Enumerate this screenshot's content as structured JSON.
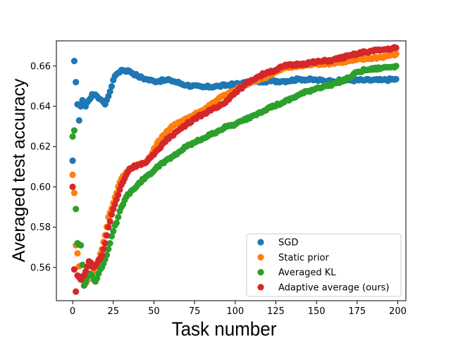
{
  "chart_data": {
    "type": "scatter",
    "xlabel": "Task number",
    "ylabel": "Averaged test accuracy",
    "xlim": [
      -10,
      205
    ],
    "ylim": [
      0.5435,
      0.6725
    ],
    "xticks": [
      0,
      25,
      50,
      75,
      100,
      125,
      150,
      175,
      200
    ],
    "yticks": [
      0.56,
      0.58,
      0.6,
      0.62,
      0.64,
      0.66
    ],
    "ytick_labels": [
      "0.56",
      "0.58",
      "0.60",
      "0.62",
      "0.64",
      "0.66"
    ],
    "xtick_labels": [
      "0",
      "25",
      "50",
      "75",
      "100",
      "125",
      "150",
      "175",
      "200"
    ],
    "grid": false,
    "legend_position": "lower-right",
    "series": [
      {
        "name": "SGD",
        "color": "#1f77b4",
        "anchors": [
          [
            0,
            0.613
          ],
          [
            1,
            0.6625
          ],
          [
            2,
            0.652
          ],
          [
            3,
            0.641
          ],
          [
            4,
            0.633
          ],
          [
            5,
            0.64
          ],
          [
            6,
            0.643
          ],
          [
            8,
            0.64
          ],
          [
            10,
            0.643
          ],
          [
            12,
            0.646
          ],
          [
            15,
            0.645
          ],
          [
            18,
            0.643
          ],
          [
            20,
            0.641
          ],
          [
            22,
            0.645
          ],
          [
            25,
            0.653
          ],
          [
            27,
            0.656
          ],
          [
            30,
            0.658
          ],
          [
            35,
            0.6575
          ],
          [
            40,
            0.655
          ],
          [
            45,
            0.6535
          ],
          [
            50,
            0.6525
          ],
          [
            60,
            0.653
          ],
          [
            70,
            0.6505
          ],
          [
            80,
            0.6495
          ],
          [
            90,
            0.65
          ],
          [
            100,
            0.651
          ],
          [
            110,
            0.652
          ],
          [
            120,
            0.6525
          ],
          [
            130,
            0.6525
          ],
          [
            140,
            0.6535
          ],
          [
            150,
            0.653
          ],
          [
            160,
            0.6525
          ],
          [
            170,
            0.653
          ],
          [
            180,
            0.653
          ],
          [
            190,
            0.653
          ],
          [
            199,
            0.6535
          ]
        ]
      },
      {
        "name": "Static prior",
        "color": "#ff7f0e",
        "anchors": [
          [
            0,
            0.606
          ],
          [
            1,
            0.597
          ],
          [
            2,
            0.571
          ],
          [
            3,
            0.567
          ],
          [
            5,
            0.555
          ],
          [
            8,
            0.552
          ],
          [
            10,
            0.556
          ],
          [
            13,
            0.558
          ],
          [
            15,
            0.562
          ],
          [
            18,
            0.569
          ],
          [
            20,
            0.576
          ],
          [
            22,
            0.585
          ],
          [
            25,
            0.592
          ],
          [
            28,
            0.6
          ],
          [
            30,
            0.604
          ],
          [
            35,
            0.609
          ],
          [
            40,
            0.611
          ],
          [
            45,
            0.612
          ],
          [
            48,
            0.615
          ],
          [
            50,
            0.619
          ],
          [
            55,
            0.625
          ],
          [
            60,
            0.629
          ],
          [
            65,
            0.632
          ],
          [
            70,
            0.634
          ],
          [
            75,
            0.636
          ],
          [
            80,
            0.638
          ],
          [
            85,
            0.641
          ],
          [
            90,
            0.644
          ],
          [
            95,
            0.646
          ],
          [
            100,
            0.648
          ],
          [
            110,
            0.652
          ],
          [
            120,
            0.655
          ],
          [
            130,
            0.659
          ],
          [
            140,
            0.66
          ],
          [
            150,
            0.661
          ],
          [
            160,
            0.6615
          ],
          [
            170,
            0.6625
          ],
          [
            180,
            0.6635
          ],
          [
            190,
            0.6645
          ],
          [
            199,
            0.666
          ]
        ]
      },
      {
        "name": "Averaged KL",
        "color": "#2ca02c",
        "anchors": [
          [
            0,
            0.625
          ],
          [
            1,
            0.628
          ],
          [
            2,
            0.589
          ],
          [
            3,
            0.572
          ],
          [
            5,
            0.571
          ],
          [
            7,
            0.551
          ],
          [
            10,
            0.557
          ],
          [
            12,
            0.556
          ],
          [
            14,
            0.553
          ],
          [
            16,
            0.557
          ],
          [
            18,
            0.56
          ],
          [
            20,
            0.564
          ],
          [
            23,
            0.572
          ],
          [
            25,
            0.578
          ],
          [
            28,
            0.585
          ],
          [
            30,
            0.59
          ],
          [
            33,
            0.595
          ],
          [
            36,
            0.598
          ],
          [
            40,
            0.601
          ],
          [
            45,
            0.605
          ],
          [
            50,
            0.608
          ],
          [
            55,
            0.612
          ],
          [
            60,
            0.614
          ],
          [
            65,
            0.617
          ],
          [
            70,
            0.62
          ],
          [
            75,
            0.622
          ],
          [
            80,
            0.624
          ],
          [
            85,
            0.626
          ],
          [
            90,
            0.628
          ],
          [
            95,
            0.63
          ],
          [
            100,
            0.631
          ],
          [
            105,
            0.633
          ],
          [
            110,
            0.635
          ],
          [
            115,
            0.637
          ],
          [
            120,
            0.639
          ],
          [
            130,
            0.642
          ],
          [
            140,
            0.646
          ],
          [
            150,
            0.649
          ],
          [
            160,
            0.651
          ],
          [
            170,
            0.654
          ],
          [
            175,
            0.657
          ],
          [
            180,
            0.658
          ],
          [
            190,
            0.659
          ],
          [
            199,
            0.66
          ]
        ]
      },
      {
        "name": "Adaptive average (ours)",
        "color": "#d62728",
        "anchors": [
          [
            0,
            0.6
          ],
          [
            1,
            0.559
          ],
          [
            2,
            0.548
          ],
          [
            3,
            0.556
          ],
          [
            5,
            0.554
          ],
          [
            8,
            0.558
          ],
          [
            10,
            0.563
          ],
          [
            13,
            0.56
          ],
          [
            15,
            0.562
          ],
          [
            18,
            0.566
          ],
          [
            20,
            0.572
          ],
          [
            22,
            0.58
          ],
          [
            25,
            0.589
          ],
          [
            28,
            0.596
          ],
          [
            30,
            0.601
          ],
          [
            33,
            0.606
          ],
          [
            35,
            0.609
          ],
          [
            40,
            0.611
          ],
          [
            45,
            0.612
          ],
          [
            50,
            0.616
          ],
          [
            55,
            0.621
          ],
          [
            60,
            0.625
          ],
          [
            65,
            0.628
          ],
          [
            70,
            0.631
          ],
          [
            75,
            0.634
          ],
          [
            80,
            0.636
          ],
          [
            85,
            0.638
          ],
          [
            90,
            0.64
          ],
          [
            95,
            0.643
          ],
          [
            100,
            0.647
          ],
          [
            105,
            0.65
          ],
          [
            110,
            0.653
          ],
          [
            115,
            0.655
          ],
          [
            120,
            0.657
          ],
          [
            125,
            0.658
          ],
          [
            130,
            0.66
          ],
          [
            140,
            0.661
          ],
          [
            150,
            0.662
          ],
          [
            160,
            0.663
          ],
          [
            170,
            0.665
          ],
          [
            180,
            0.667
          ],
          [
            190,
            0.668
          ],
          [
            199,
            0.669
          ]
        ]
      }
    ]
  }
}
